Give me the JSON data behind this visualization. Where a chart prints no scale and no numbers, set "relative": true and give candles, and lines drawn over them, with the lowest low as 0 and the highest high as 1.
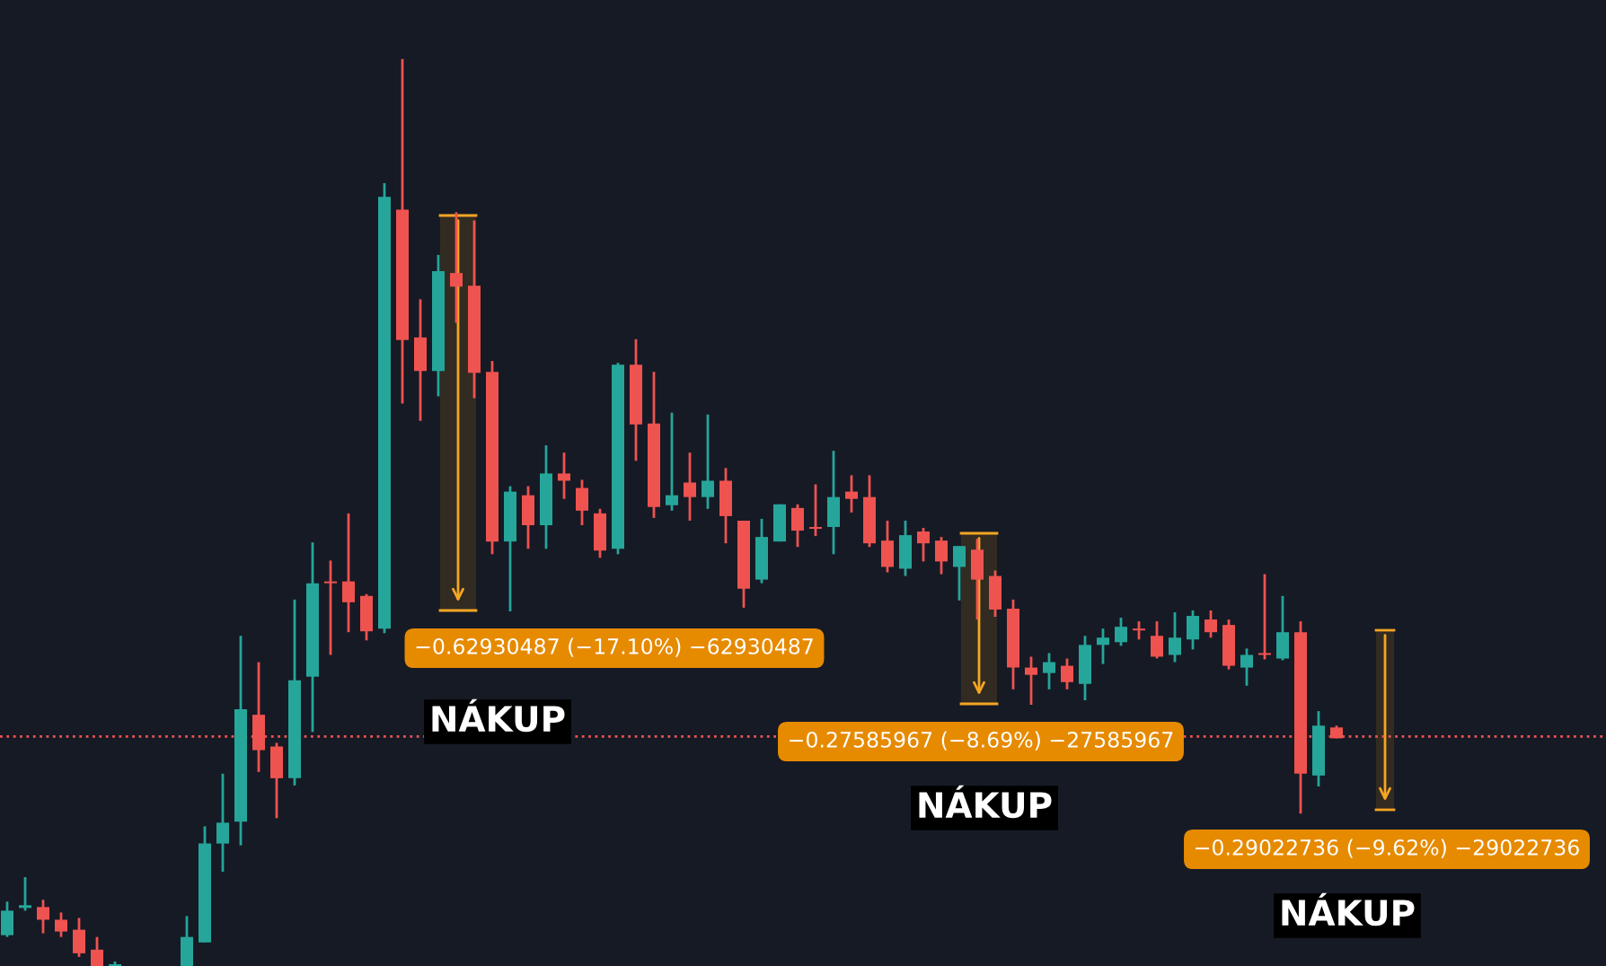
{
  "chart_data": {
    "type": "candlestick",
    "relative": true,
    "categories": [
      null,
      null,
      null,
      null,
      null,
      null,
      null,
      null,
      null,
      null,
      null,
      null,
      null,
      null,
      null,
      null,
      null,
      null,
      null,
      null,
      null,
      null,
      null,
      null,
      null,
      null,
      null,
      null,
      null,
      null,
      null,
      null,
      null,
      null,
      null,
      null,
      null,
      null,
      null,
      null,
      null,
      null,
      null,
      null,
      null,
      null,
      null,
      null,
      null,
      null,
      null,
      null,
      null,
      null,
      null,
      null,
      null,
      null,
      null,
      null,
      null,
      null,
      null,
      null,
      null,
      null,
      null,
      null,
      null,
      null,
      null,
      null,
      null,
      null,
      null,
      null,
      null,
      null,
      null,
      null,
      null,
      null,
      null,
      null,
      null,
      null,
      null,
      null,
      null,
      null
    ],
    "ohlc": [
      [
        0.034,
        0.071,
        0.032,
        0.061
      ],
      [
        0.064,
        0.098,
        0.061,
        0.067
      ],
      [
        0.065,
        0.073,
        0.036,
        0.051
      ],
      [
        0.051,
        0.059,
        0.032,
        0.038
      ],
      [
        0.04,
        0.053,
        0.01,
        0.014
      ],
      [
        0.018,
        0.032,
        0,
        0
      ],
      [
        0,
        0.005,
        0,
        0
      ],
      null,
      null,
      null,
      [
        0,
        0.055,
        0,
        0.032
      ],
      [
        0.026,
        0.154,
        0.026,
        0.135
      ],
      [
        0.135,
        0.212,
        0.104,
        0.158
      ],
      [
        0.159,
        0.364,
        0.133,
        0.283
      ],
      [
        0.277,
        0.335,
        0.214,
        0.238
      ],
      [
        0.242,
        0.246,
        0.163,
        0.207
      ],
      [
        0.207,
        0.404,
        0.199,
        0.315
      ],
      [
        0.319,
        0.467,
        0.258,
        0.422
      ],
      [
        0.423,
        0.447,
        0.343,
        0.422
      ],
      [
        0.424,
        0.499,
        0.368,
        0.401
      ],
      [
        0.408,
        0.41,
        0.359,
        0.369
      ],
      [
        0.372,
        0.863,
        0.367,
        0.848
      ],
      [
        0.834,
        1,
        0.62,
        0.69
      ],
      [
        0.693,
        0.735,
        0.601,
        0.656
      ],
      [
        0.656,
        0.784,
        0.628,
        0.766
      ],
      [
        0.764,
        0.831,
        0.709,
        0.749
      ],
      [
        0.75,
        0.822,
        0.626,
        0.654
      ],
      [
        0.655,
        0.667,
        0.454,
        0.468
      ],
      [
        0.468,
        0.529,
        0.391,
        0.523
      ],
      [
        0.519,
        0.529,
        0.46,
        0.486
      ],
      [
        0.486,
        0.574,
        0.46,
        0.543
      ],
      [
        0.543,
        0.566,
        0.515,
        0.535
      ],
      [
        0.527,
        0.536,
        0.486,
        0.502
      ],
      [
        0.499,
        0.504,
        0.45,
        0.458
      ],
      [
        0.46,
        0.665,
        0.454,
        0.663
      ],
      [
        0.663,
        0.691,
        0.557,
        0.597
      ],
      [
        0.598,
        0.655,
        0.494,
        0.506
      ],
      [
        0.508,
        0.61,
        0.502,
        0.519
      ],
      [
        0.533,
        0.566,
        0.491,
        0.517
      ],
      [
        0.517,
        0.608,
        0.504,
        0.535
      ],
      [
        0.535,
        0.549,
        0.466,
        0.496
      ],
      [
        0.491,
        0.491,
        0.395,
        0.416
      ],
      [
        0.426,
        0.493,
        0.422,
        0.473
      ],
      [
        0.468,
        0.509,
        0.468,
        0.509
      ],
      [
        0.505,
        0.509,
        0.462,
        0.48
      ],
      [
        0.483,
        0.531,
        0.474,
        0.482
      ],
      [
        0.484,
        0.568,
        0.454,
        0.517
      ],
      [
        0.523,
        0.541,
        0.5,
        0.515
      ],
      [
        0.517,
        0.541,
        0.462,
        0.466
      ],
      [
        0.469,
        0.491,
        0.434,
        0.44
      ],
      [
        0.438,
        0.491,
        0.43,
        0.475
      ],
      [
        0.479,
        0.483,
        0.446,
        0.466
      ],
      [
        0.469,
        0.473,
        0.432,
        0.446
      ],
      [
        0.44,
        0.463,
        0.403,
        0.463
      ],
      [
        0.459,
        0.471,
        0.382,
        0.426
      ],
      [
        0.43,
        0.436,
        0.385,
        0.393
      ],
      [
        0.394,
        0.404,
        0.305,
        0.329
      ],
      [
        0.329,
        0.341,
        0.288,
        0.321
      ],
      [
        0.323,
        0.345,
        0.305,
        0.335
      ],
      [
        0.331,
        0.339,
        0.305,
        0.313
      ],
      [
        0.311,
        0.364,
        0.293,
        0.354
      ],
      [
        0.354,
        0.372,
        0.333,
        0.362
      ],
      [
        0.357,
        0.384,
        0.353,
        0.374
      ],
      [
        0.371,
        0.38,
        0.36,
        0.37
      ],
      [
        0.364,
        0.38,
        0.339,
        0.341
      ],
      [
        0.343,
        0.39,
        0.335,
        0.362
      ],
      [
        0.36,
        0.392,
        0.349,
        0.386
      ],
      [
        0.382,
        0.392,
        0.362,
        0.368
      ],
      [
        0.376,
        0.382,
        0.327,
        0.331
      ],
      [
        0.329,
        0.35,
        0.309,
        0.343
      ],
      [
        0.344,
        0.432,
        0.338,
        0.343
      ],
      [
        0.339,
        0.408,
        0.337,
        0.368
      ],
      [
        0.368,
        0.38,
        0.168,
        0.212
      ],
      [
        0.21,
        0.281,
        0.198,
        0.265
      ],
      [
        0.263,
        0.265,
        0.251,
        0.251
      ],
      null,
      null,
      null,
      null,
      null,
      null,
      null,
      null,
      null,
      null,
      null,
      null,
      null,
      null,
      null
    ],
    "ref_lines": [
      {
        "axis": "y",
        "value": 0.253,
        "color": "#ef5350",
        "line_style": "dotted"
      }
    ],
    "annotations": [
      "−0.62930487 (−17.10%) −62930487",
      "NÁKUP",
      "−0.27585967 (−8.69%) −27585967",
      "NÁKUP",
      "−0.29022736 (−9.62%) −29022736",
      "NÁKUP"
    ]
  }
}
